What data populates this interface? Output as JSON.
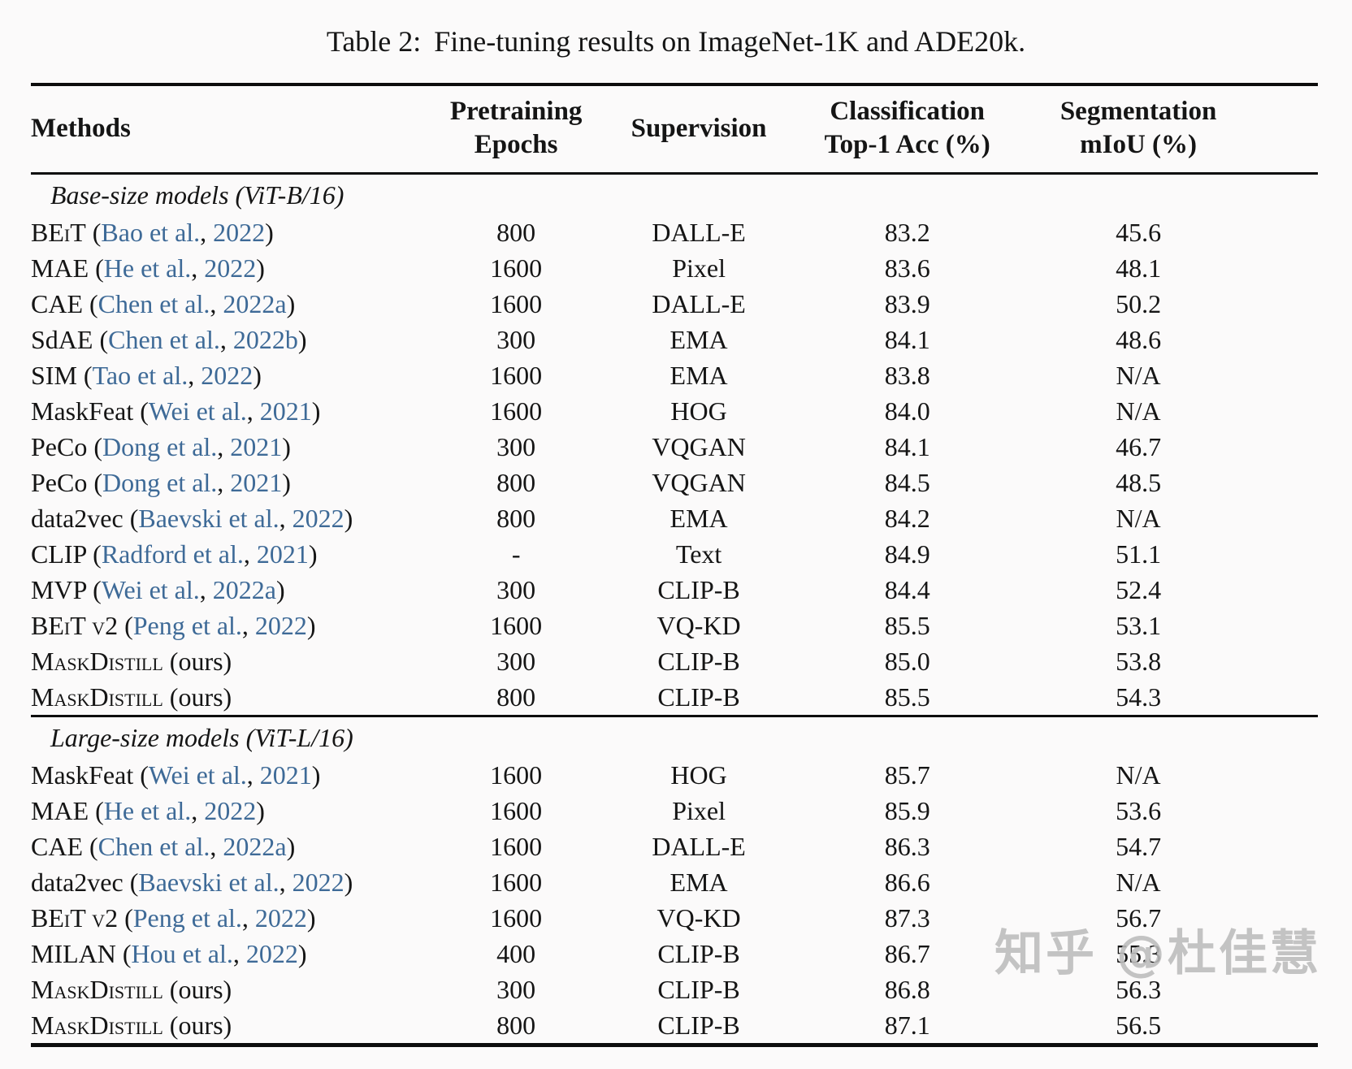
{
  "page": {
    "title_label": "Table 2:",
    "title_text": "Fine-tuning results on ImageNet-1K and ADE20k.",
    "watermark": "知乎 @杜佳慧",
    "link_color": "#3e6a97"
  },
  "table": {
    "headers": {
      "methods": "Methods",
      "epochs": [
        "Pretraining",
        "Epochs"
      ],
      "supervision": "Supervision",
      "classification": [
        "Classification",
        "Top-1 Acc (%)"
      ],
      "segmentation": [
        "Segmentation",
        "mIoU (%)"
      ]
    },
    "sections": [
      {
        "label": "Base-size models (ViT-B/16)",
        "rows": [
          {
            "name": "BEiT",
            "sc": true,
            "author": "Bao et al.",
            "year": "2022",
            "epochs": "800",
            "supervision": "DALL-E",
            "acc": "83.2",
            "miou": "45.6"
          },
          {
            "name": "MAE",
            "author": "He et al.",
            "year": "2022",
            "epochs": "1600",
            "supervision": "Pixel",
            "acc": "83.6",
            "miou": "48.1"
          },
          {
            "name": "CAE",
            "author": "Chen et al.",
            "year": "2022a",
            "epochs": "1600",
            "supervision": "DALL-E",
            "acc": "83.9",
            "miou": "50.2"
          },
          {
            "name": "SdAE",
            "author": "Chen et al.",
            "year": "2022b",
            "epochs": "300",
            "supervision": "EMA",
            "acc": "84.1",
            "miou": "48.6"
          },
          {
            "name": "SIM",
            "author": "Tao et al.",
            "year": "2022",
            "epochs": "1600",
            "supervision": "EMA",
            "acc": "83.8",
            "miou": "N/A"
          },
          {
            "name": "MaskFeat",
            "author": "Wei et al.",
            "year": "2021",
            "epochs": "1600",
            "supervision": "HOG",
            "acc": "84.0",
            "miou": "N/A"
          },
          {
            "name": "PeCo",
            "author": "Dong et al.",
            "year": "2021",
            "epochs": "300",
            "supervision": "VQGAN",
            "acc": "84.1",
            "miou": "46.7"
          },
          {
            "name": "PeCo",
            "author": "Dong et al.",
            "year": "2021",
            "epochs": "800",
            "supervision": "VQGAN",
            "acc": "84.5",
            "miou": "48.5"
          },
          {
            "name": "data2vec",
            "author": "Baevski et al.",
            "year": "2022",
            "epochs": "800",
            "supervision": "EMA",
            "acc": "84.2",
            "miou": "N/A"
          },
          {
            "name": "CLIP",
            "author": "Radford et al.",
            "year": "2021",
            "epochs": "-",
            "supervision": "Text",
            "acc": "84.9",
            "miou": "51.1"
          },
          {
            "name": "MVP",
            "author": "Wei et al.",
            "year": "2022a",
            "epochs": "300",
            "supervision": "CLIP-B",
            "acc": "84.4",
            "miou": "52.4"
          },
          {
            "name": "BEiT v2",
            "sc": true,
            "author": "Peng et al.",
            "year": "2022",
            "epochs": "1600",
            "supervision": "VQ-KD",
            "acc": "85.5",
            "miou": "53.1"
          },
          {
            "name": "MaskDistill",
            "sc": true,
            "note": "(ours)",
            "epochs": "300",
            "supervision": "CLIP-B",
            "acc": "85.0",
            "miou": "53.8"
          },
          {
            "name": "MaskDistill",
            "sc": true,
            "note": "(ours)",
            "epochs": "800",
            "supervision": "CLIP-B",
            "acc": "85.5",
            "miou": "54.3"
          }
        ]
      },
      {
        "label": "Large-size models (ViT-L/16)",
        "rows": [
          {
            "name": "MaskFeat",
            "author": "Wei et al.",
            "year": "2021",
            "epochs": "1600",
            "supervision": "HOG",
            "acc": "85.7",
            "miou": "N/A"
          },
          {
            "name": "MAE",
            "author": "He et al.",
            "year": "2022",
            "epochs": "1600",
            "supervision": "Pixel",
            "acc": "85.9",
            "miou": "53.6"
          },
          {
            "name": "CAE",
            "author": "Chen et al.",
            "year": "2022a",
            "epochs": "1600",
            "supervision": "DALL-E",
            "acc": "86.3",
            "miou": "54.7"
          },
          {
            "name": "data2vec",
            "author": "Baevski et al.",
            "year": "2022",
            "epochs": "1600",
            "supervision": "EMA",
            "acc": "86.6",
            "miou": "N/A"
          },
          {
            "name": "BEiT v2",
            "sc": true,
            "author": "Peng et al.",
            "year": "2022",
            "epochs": "1600",
            "supervision": "VQ-KD",
            "acc": "87.3",
            "miou": "56.7"
          },
          {
            "name": "MILAN",
            "author": "Hou et al.",
            "year": "2022",
            "epochs": "400",
            "supervision": "CLIP-B",
            "acc": "86.7",
            "miou": "55.3"
          },
          {
            "name": "MaskDistill",
            "sc": true,
            "note": "(ours)",
            "epochs": "300",
            "supervision": "CLIP-B",
            "acc": "86.8",
            "miou": "56.3"
          },
          {
            "name": "MaskDistill",
            "sc": true,
            "note": "(ours)",
            "epochs": "800",
            "supervision": "CLIP-B",
            "acc": "87.1",
            "miou": "56.5"
          }
        ]
      }
    ]
  }
}
